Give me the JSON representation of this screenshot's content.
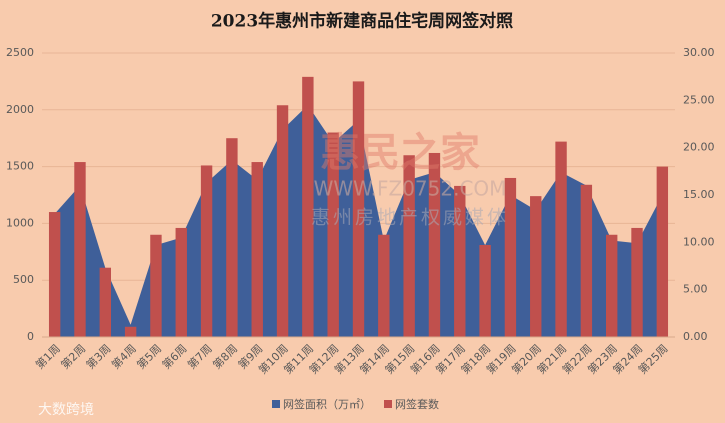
{
  "chart_data": {
    "type": "bar-area",
    "title": "2023年惠州市新建商品住宅周网签对照",
    "categories": [
      "第1周",
      "第2周",
      "第3周",
      "第4周",
      "第5周",
      "第6周",
      "第7周",
      "第8周",
      "第9周",
      "第10周",
      "第11周",
      "第12周",
      "第13周",
      "第14周",
      "第15周",
      "第16周",
      "第17周",
      "第18周",
      "第19周",
      "第20周",
      "第21周",
      "第22周",
      "第23周",
      "第24周",
      "第25周"
    ],
    "series": [
      {
        "name": "网签面积（万㎡）",
        "type": "area",
        "axis": "y2",
        "color": "#3f5f99",
        "values": [
          13,
          16,
          7.3,
          1.3,
          9.7,
          10.5,
          16.3,
          18.7,
          16.6,
          21.9,
          24.5,
          20.5,
          22.9,
          10.2,
          16.6,
          17.4,
          15,
          9.7,
          15,
          13.4,
          17.4,
          16,
          10.2,
          9.9,
          15
        ]
      },
      {
        "name": "网签套数",
        "type": "bar",
        "axis": "y",
        "color": "#c0504d",
        "values": [
          1100,
          1540,
          610,
          90,
          900,
          960,
          1510,
          1750,
          1540,
          2040,
          2290,
          1800,
          2250,
          900,
          1600,
          1620,
          1330,
          810,
          1400,
          1240,
          1720,
          1340,
          900,
          960,
          1500
        ]
      }
    ],
    "ylim": [
      0,
      2500
    ],
    "yticks": [
      0,
      500,
      1000,
      1500,
      2000,
      2500
    ],
    "y2lim": [
      0,
      30
    ],
    "y2ticks": [
      {
        "value": 0,
        "label": "0.00"
      },
      {
        "value": 5,
        "label": "5.00"
      },
      {
        "value": 10,
        "label": "10.00"
      },
      {
        "value": 15,
        "label": "15.00"
      },
      {
        "value": 20,
        "label": "20.00"
      },
      {
        "value": 25,
        "label": "25.00"
      },
      {
        "value": 30,
        "label": "30.00"
      }
    ],
    "grid": true,
    "legend": "bottom",
    "watermarks": [
      "惠民之家",
      "WWW.FZ0752.COM",
      "惠州房地产权威媒体",
      "大数跨境"
    ]
  }
}
